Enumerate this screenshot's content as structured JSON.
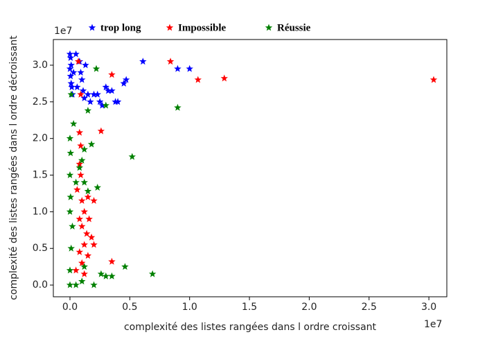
{
  "chart_data": {
    "type": "scatter",
    "x_label": "complexité des listes rangées dans l ordre croissant",
    "y_label": "complexité des listes rangées dans l ordre décroissant",
    "x_offset_label": "1e7",
    "y_offset_label": "1e7",
    "xlim": [
      -0.139,
      3.15
    ],
    "ylim": [
      -0.16,
      3.35
    ],
    "xticks": [
      {
        "value": 0,
        "label": "0.0"
      },
      0.5,
      {
        "value": 1,
        "label": "1.0"
      },
      1.5,
      {
        "value": 2,
        "label": "2.0"
      },
      2.5,
      {
        "value": 3,
        "label": "3.0"
      }
    ],
    "yticks": [
      {
        "value": 0,
        "label": "0.0"
      },
      0.5,
      {
        "value": 1,
        "label": "1.0"
      },
      1.5,
      {
        "value": 2,
        "label": "2.0"
      },
      2.5,
      {
        "value": 3,
        "label": "3.0"
      }
    ],
    "series": [
      {
        "name": "trop long",
        "color": "#0000ff",
        "x": [
          0.0,
          0.005,
          0.01,
          0.0,
          0.005,
          0.01,
          0.015,
          0.02,
          0.05,
          0.08,
          0.09,
          0.1,
          0.11,
          0.12,
          0.13,
          0.15,
          0.17,
          0.2,
          0.23,
          0.25,
          0.27,
          0.3,
          0.32,
          0.35,
          0.38,
          0.4,
          0.45,
          0.47,
          0.61,
          0.9,
          1.0,
          0.03,
          0.06
        ],
        "y": [
          3.15,
          3.1,
          3.0,
          2.95,
          2.85,
          2.75,
          2.7,
          2.6,
          3.15,
          3.05,
          2.9,
          2.8,
          2.65,
          2.55,
          3.0,
          2.6,
          2.5,
          2.6,
          2.6,
          2.5,
          2.45,
          2.7,
          2.65,
          2.65,
          2.5,
          2.5,
          2.75,
          2.8,
          3.05,
          2.95,
          2.95,
          2.9,
          2.7
        ]
      },
      {
        "name": "Impossible",
        "color": "#ff0000",
        "x": [
          0.84,
          1.07,
          1.29,
          3.04,
          0.35,
          0.26,
          0.08,
          0.09,
          0.08,
          0.09,
          0.06,
          0.1,
          0.15,
          0.2,
          0.12,
          0.08,
          0.1,
          0.14,
          0.18,
          0.12,
          0.08,
          0.15,
          0.2,
          0.1,
          0.35,
          0.12,
          0.07,
          0.09,
          0.05,
          0.16
        ],
        "y": [
          3.05,
          2.8,
          2.82,
          2.8,
          2.87,
          2.1,
          2.08,
          1.9,
          1.65,
          1.5,
          1.3,
          1.15,
          1.2,
          1.15,
          1.0,
          0.9,
          0.8,
          0.7,
          0.65,
          0.55,
          0.45,
          0.4,
          0.55,
          0.3,
          0.32,
          0.15,
          3.05,
          2.6,
          0.2,
          0.9
        ]
      },
      {
        "name": "Réussie",
        "color": "#008000",
        "x": [
          0.9,
          0.52,
          0.22,
          0.3,
          0.15,
          0.18,
          0.12,
          0.1,
          0.08,
          0.05,
          0.12,
          0.23,
          0.15,
          0.0,
          0.01,
          0.0,
          0.05,
          0.1,
          0.2,
          0.26,
          0.3,
          0.35,
          0.46,
          0.69,
          0.03,
          0.0,
          0.01,
          0.0,
          0.02,
          0.0,
          0.12,
          0.005,
          0.005
        ],
        "y": [
          2.42,
          1.75,
          2.95,
          2.45,
          2.38,
          1.92,
          1.85,
          1.7,
          1.6,
          1.4,
          1.4,
          1.33,
          1.28,
          1.0,
          0.5,
          0.2,
          0.0,
          0.05,
          0.0,
          0.15,
          0.12,
          0.12,
          0.25,
          0.15,
          2.2,
          2.0,
          2.6,
          1.5,
          0.8,
          0.0,
          0.25,
          1.2,
          1.8
        ]
      }
    ]
  }
}
